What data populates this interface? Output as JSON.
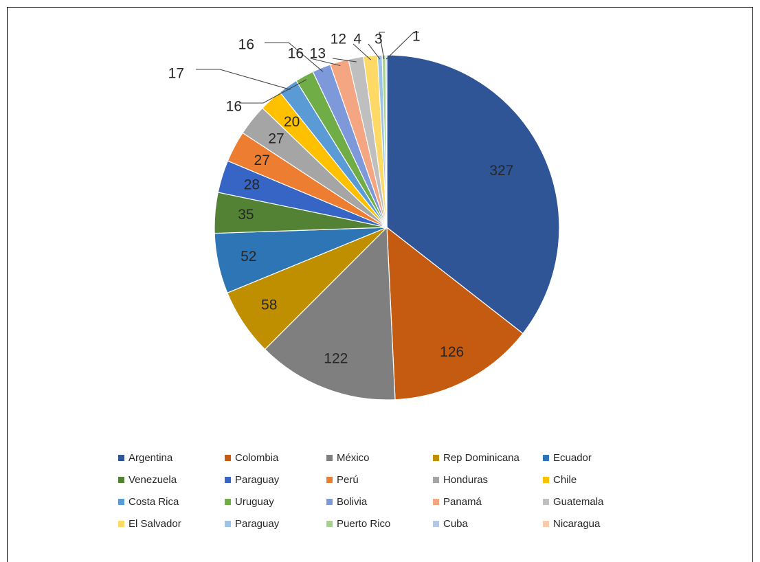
{
  "chart_data": {
    "type": "pie",
    "title": "",
    "legend_position": "bottom",
    "slices": [
      {
        "label": "Argentina",
        "value": 327,
        "value_label": "327",
        "color": "#2F5597"
      },
      {
        "label": "Colombia",
        "value": 126,
        "value_label": "126",
        "color": "#C55A11"
      },
      {
        "label": "México",
        "value": 122,
        "value_label": "122",
        "color": "#7F7F7F"
      },
      {
        "label": "Rep Dominicana",
        "value": 58,
        "value_label": "58",
        "color": "#BF8F00"
      },
      {
        "label": "Ecuador",
        "value": 52,
        "value_label": "52",
        "color": "#2E75B6"
      },
      {
        "label": "Venezuela",
        "value": 35,
        "value_label": "35",
        "color": "#548235"
      },
      {
        "label": "Paraguay",
        "value": 28,
        "value_label": "28",
        "color": "#3665C6"
      },
      {
        "label": "Perú",
        "value": 27,
        "value_label": "27",
        "color": "#ED7D31"
      },
      {
        "label": "Honduras",
        "value": 27,
        "value_label": "27",
        "color": "#A5A5A5"
      },
      {
        "label": "Chile",
        "value": 20,
        "value_label": "20",
        "color": "#FFC000"
      },
      {
        "label": "Costa Rica",
        "value": 17,
        "value_label": "17",
        "color": "#5B9BD5"
      },
      {
        "label": "Uruguay",
        "value": 16,
        "value_label": "16",
        "color": "#70AD47"
      },
      {
        "label": "Bolivia",
        "value": 16,
        "value_label": "16",
        "color": "#7E99DA"
      },
      {
        "label": "Panamá",
        "value": 16,
        "value_label": "16",
        "color": "#F4A582"
      },
      {
        "label": "Guatemala",
        "value": 13,
        "value_label": "13",
        "color": "#BFBFBF"
      },
      {
        "label": "El Salvador",
        "value": 12,
        "value_label": "12",
        "color": "#FFD966"
      },
      {
        "label": "Paraguay",
        "value": 4,
        "value_label": "4",
        "color": "#9DC3E6"
      },
      {
        "label": "Puerto Rico",
        "value": 3,
        "value_label": "3",
        "color": "#A9D18E"
      },
      {
        "label": "Cuba",
        "value": 1,
        "value_label": "1",
        "color": "#B4C7E7"
      },
      {
        "label": "Nicaragua",
        "value": 0,
        "value_label": "",
        "color": "#F8CBAD"
      }
    ]
  }
}
